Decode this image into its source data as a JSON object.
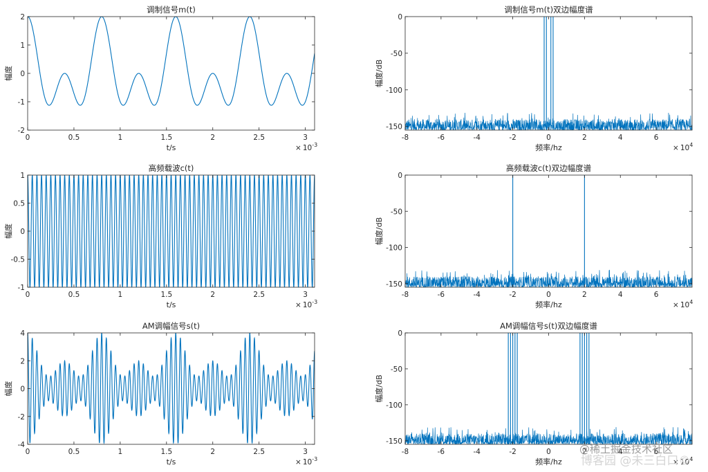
{
  "chart_data": [
    {
      "id": "m_time",
      "type": "line",
      "title": "调制信号m(t)",
      "xlabel": "t/s",
      "ylabel": "幅度",
      "xlim": [
        0,
        3.1
      ],
      "ylim": [
        -2,
        2
      ],
      "xticks": [
        "0",
        "0.5",
        "1",
        "1.5",
        "2",
        "2.5",
        "3"
      ],
      "yticks": [
        "-2",
        "-1",
        "0",
        "1",
        "2"
      ],
      "x_exponent": "10",
      "x_exponent_power": "-3",
      "signal": {
        "components": [
          {
            "amplitude": 1,
            "frequency_hz": 1250
          },
          {
            "amplitude": 1,
            "frequency_hz": 2500
          }
        ],
        "duration_ms": 3.1,
        "offset": 0
      }
    },
    {
      "id": "m_spec",
      "type": "line",
      "title": "调制信号m(t)双边幅度谱",
      "xlabel": "频率/hz",
      "ylabel": "幅度/dB",
      "xlim": [
        -8,
        8
      ],
      "ylim": [
        -155,
        0
      ],
      "xticks": [
        "-8",
        "-6",
        "-4",
        "-2",
        "0",
        "2",
        "4",
        "6"
      ],
      "yticks": [
        "-150",
        "-100",
        "-50",
        "0"
      ],
      "x_exponent": "10",
      "x_exponent_power": "4",
      "noise_floor_db": [
        -155,
        -135
      ],
      "peaks_freq_x1e4": [
        -0.25,
        -0.125,
        0.125,
        0.25
      ],
      "peak_level_db": 0
    },
    {
      "id": "c_time",
      "type": "line",
      "title": "高频载波c(t)",
      "xlabel": "t/s",
      "ylabel": "幅度",
      "xlim": [
        0,
        3.1
      ],
      "ylim": [
        -1,
        1
      ],
      "xticks": [
        "0",
        "0.5",
        "1",
        "1.5",
        "2",
        "2.5",
        "3"
      ],
      "yticks": [
        "-1",
        "-0.5",
        "0",
        "0.5",
        "1"
      ],
      "x_exponent": "10",
      "x_exponent_power": "-3",
      "signal": {
        "components": [
          {
            "amplitude": 1,
            "frequency_hz": 20000
          }
        ],
        "duration_ms": 3.1,
        "offset": 0
      }
    },
    {
      "id": "c_spec",
      "type": "line",
      "title": "高频载波c(t)双边幅度谱",
      "xlabel": "频率/hz",
      "ylabel": "幅度/dB",
      "xlim": [
        -8,
        8
      ],
      "ylim": [
        -155,
        0
      ],
      "xticks": [
        "-8",
        "-6",
        "-4",
        "-2",
        "0",
        "2",
        "4",
        "6"
      ],
      "yticks": [
        "-150",
        "-100",
        "-50",
        "0"
      ],
      "x_exponent": "10",
      "x_exponent_power": "4",
      "noise_floor_db": [
        -155,
        -135
      ],
      "peaks_freq_x1e4": [
        -2,
        2
      ],
      "peak_level_db": 0
    },
    {
      "id": "s_time",
      "type": "line",
      "title": "AM调幅信号s(t)",
      "xlabel": "t/s",
      "ylabel": "幅度",
      "xlim": [
        0,
        3.1
      ],
      "ylim": [
        -4,
        4
      ],
      "xticks": [
        "0",
        "0.5",
        "1",
        "1.5",
        "2",
        "2.5",
        "3"
      ],
      "yticks": [
        "-4",
        "-2",
        "0",
        "2",
        "4"
      ],
      "x_exponent": "10",
      "x_exponent_power": "-3",
      "signal": {
        "offset": 2,
        "message_components": [
          {
            "amplitude": 1,
            "frequency_hz": 1250
          },
          {
            "amplitude": 1,
            "frequency_hz": 2500
          }
        ],
        "carrier_hz": 20000,
        "duration_ms": 3.1
      }
    },
    {
      "id": "s_spec",
      "type": "line",
      "title": "AM调幅信号s(t)双边幅度谱",
      "xlabel": "频率/hz",
      "ylabel": "幅度/dB",
      "xlim": [
        -8,
        8
      ],
      "ylim": [
        -155,
        0
      ],
      "xticks": [
        "-8",
        "-6",
        "-4",
        "-2",
        "0",
        "2",
        "4",
        "6"
      ],
      "yticks": [
        "-150",
        "-100",
        "-50",
        "0"
      ],
      "x_exponent": "10",
      "x_exponent_power": "4",
      "noise_floor_db": [
        -155,
        -135
      ],
      "peaks_freq_x1e4": [
        -2.25,
        -2.125,
        -2,
        -1.875,
        -1.75,
        1.75,
        1.875,
        2,
        2.125,
        2.25
      ],
      "peak_level_db": 0
    }
  ],
  "style": {
    "line_color": "#0072BD",
    "axis_color": "#262626",
    "text_color": "#262626"
  },
  "watermark": {
    "line1": "@稀土掘金技术社区",
    "line2": "博客园 @未三白口©"
  }
}
